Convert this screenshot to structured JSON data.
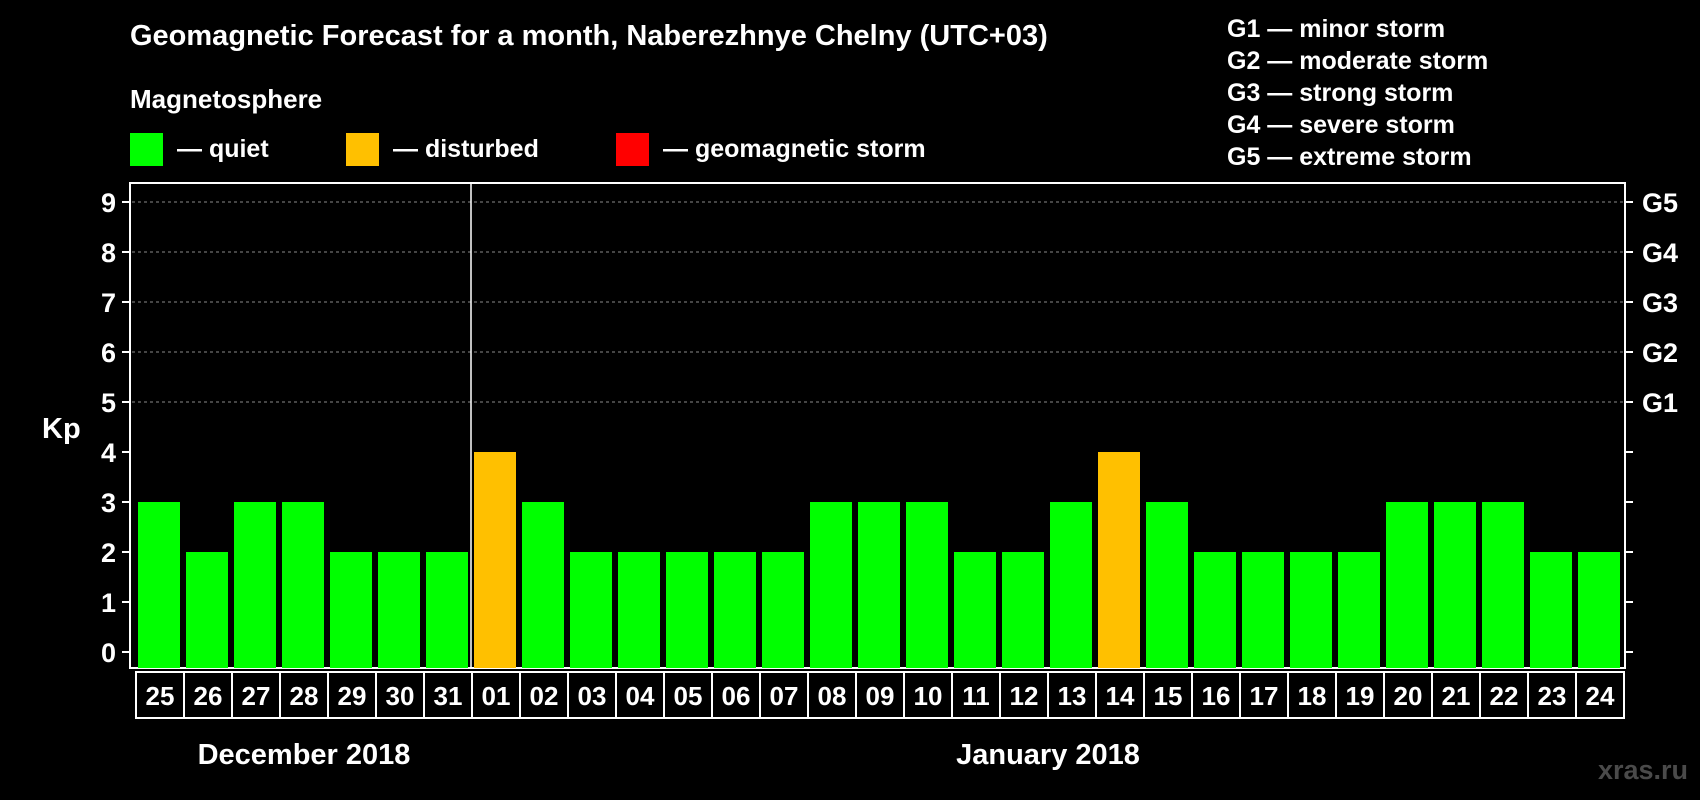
{
  "title": "Geomagnetic Forecast for a month, Naberezhnye Chelny (UTC+03)",
  "magnetosphere_heading": "Magnetosphere",
  "legend": [
    {
      "label": "— quiet",
      "color": "#00ff00"
    },
    {
      "label": "— disturbed",
      "color": "#ffc000"
    },
    {
      "label": "— geomagnetic storm",
      "color": "#ff0000"
    }
  ],
  "storm_scale": [
    "G1 — minor storm",
    "G2 — moderate storm",
    "G3 — strong storm",
    "G4 — severe storm",
    "G5 — extreme storm"
  ],
  "watermark": "xras.ru",
  "chart_data": {
    "type": "bar",
    "ylabel": "Kp",
    "ylim": [
      0,
      9
    ],
    "yticks": [
      0,
      1,
      2,
      3,
      4,
      5,
      6,
      7,
      8,
      9
    ],
    "right_axis_labels": [
      {
        "kp": 5,
        "label": "G1"
      },
      {
        "kp": 6,
        "label": "G2"
      },
      {
        "kp": 7,
        "label": "G3"
      },
      {
        "kp": 8,
        "label": "G4"
      },
      {
        "kp": 9,
        "label": "G5"
      }
    ],
    "grid": "dashed horizontal lines at Kp 5–9",
    "categories": [
      "25",
      "26",
      "27",
      "28",
      "29",
      "30",
      "31",
      "01",
      "02",
      "03",
      "04",
      "05",
      "06",
      "07",
      "08",
      "09",
      "10",
      "11",
      "12",
      "13",
      "14",
      "15",
      "16",
      "17",
      "18",
      "19",
      "20",
      "21",
      "22",
      "23",
      "24"
    ],
    "values": [
      3,
      2,
      3,
      3,
      2,
      2,
      2,
      4,
      3,
      2,
      2,
      2,
      2,
      2,
      3,
      3,
      3,
      2,
      2,
      3,
      4,
      3,
      2,
      2,
      2,
      2,
      3,
      3,
      3,
      2,
      2
    ],
    "status": [
      "quiet",
      "quiet",
      "quiet",
      "quiet",
      "quiet",
      "quiet",
      "quiet",
      "disturbed",
      "quiet",
      "quiet",
      "quiet",
      "quiet",
      "quiet",
      "quiet",
      "quiet",
      "quiet",
      "quiet",
      "quiet",
      "quiet",
      "quiet",
      "disturbed",
      "quiet",
      "quiet",
      "quiet",
      "quiet",
      "quiet",
      "quiet",
      "quiet",
      "quiet",
      "quiet",
      "quiet"
    ],
    "status_colors": {
      "quiet": "#00ff00",
      "disturbed": "#ffc000",
      "storm": "#ff0000"
    },
    "month_groups": [
      {
        "label": "December 2018",
        "from": 0,
        "to": 6
      },
      {
        "label": "January 2018",
        "from": 7,
        "to": 30
      }
    ]
  }
}
